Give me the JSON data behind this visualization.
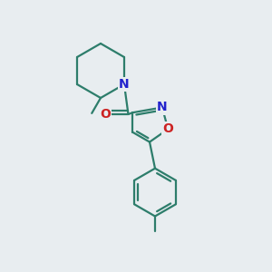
{
  "background_color": "#e8edf0",
  "bond_color": "#2d7d6b",
  "n_color": "#2222cc",
  "o_color": "#cc2222",
  "bond_width": 1.6,
  "figsize": [
    3.0,
    3.0
  ],
  "dpi": 100,
  "xlim": [
    0,
    10
  ],
  "ylim": [
    0,
    10
  ]
}
